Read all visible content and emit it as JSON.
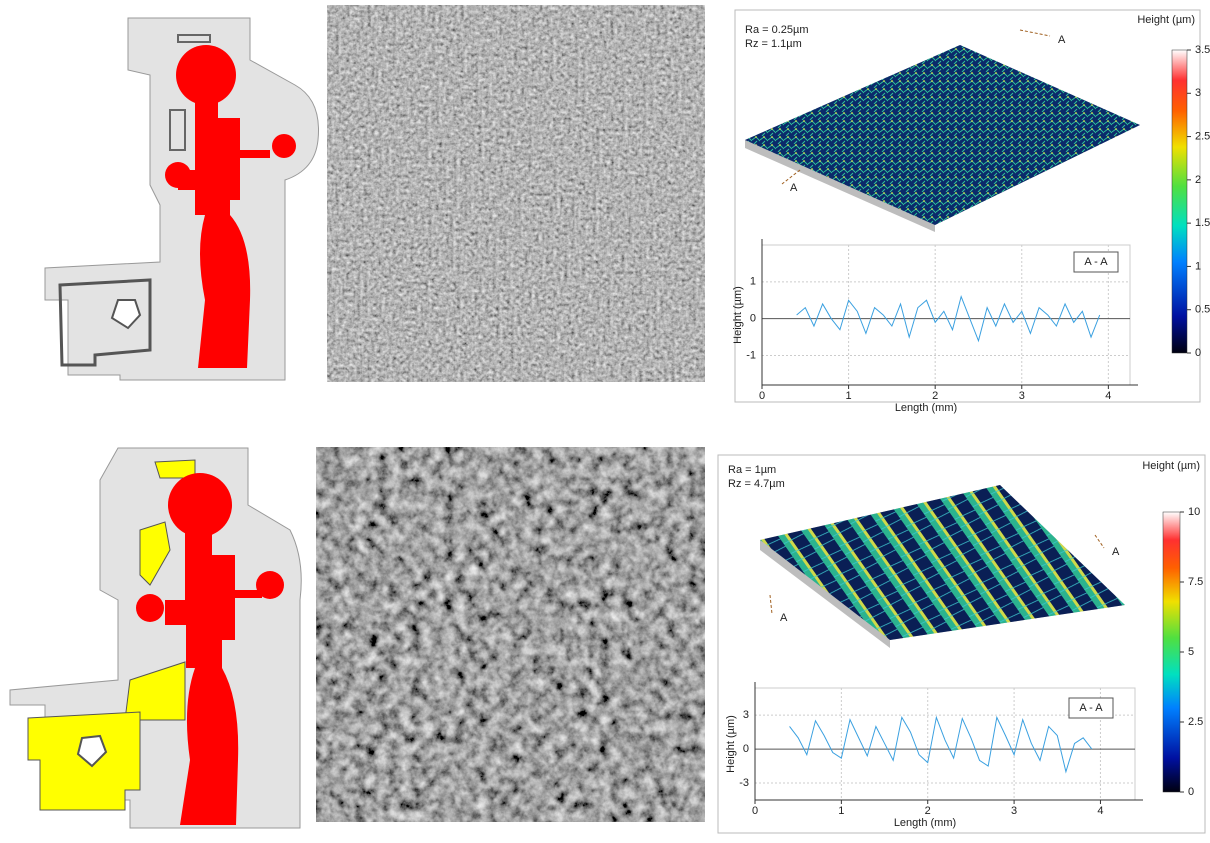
{
  "rows": [
    {
      "roughness": {
        "ra": "Ra = 0.25µm",
        "rz": "Rz = 1.1µm"
      },
      "section_marks": [
        "A",
        "A"
      ],
      "colorbar": {
        "title": "Height (µm)",
        "lim": [
          0,
          3.5
        ],
        "ticks": [
          0,
          0.5,
          1,
          1.5,
          2,
          2.5,
          3,
          3.5
        ]
      },
      "profile": {
        "legend": "A - A",
        "xlabel": "Length (mm)",
        "ylabel": "Height (µm)",
        "xlim": [
          0,
          4.25
        ],
        "ylim": [
          -1.8,
          2
        ],
        "xticks": [
          0,
          1,
          2,
          3,
          4
        ],
        "yticks": [
          -1,
          0,
          1
        ],
        "x": [
          0.4,
          0.5,
          0.6,
          0.7,
          0.8,
          0.9,
          1.0,
          1.1,
          1.2,
          1.3,
          1.4,
          1.5,
          1.6,
          1.7,
          1.8,
          1.9,
          2.0,
          2.1,
          2.2,
          2.3,
          2.4,
          2.5,
          2.6,
          2.7,
          2.8,
          2.9,
          3.0,
          3.1,
          3.2,
          3.3,
          3.4,
          3.5,
          3.6,
          3.7,
          3.8,
          3.9
        ],
        "values": [
          0.1,
          0.3,
          -0.2,
          0.4,
          0.0,
          -0.3,
          0.5,
          0.2,
          -0.4,
          0.3,
          0.1,
          -0.2,
          0.4,
          -0.5,
          0.3,
          0.5,
          -0.1,
          0.2,
          -0.3,
          0.6,
          0.0,
          -0.6,
          0.3,
          -0.2,
          0.4,
          -0.1,
          0.2,
          -0.4,
          0.3,
          0.1,
          -0.2,
          0.4,
          -0.1,
          0.2,
          -0.5,
          0.1
        ]
      }
    },
    {
      "roughness": {
        "ra": "Ra = 1µm",
        "rz": "Rz = 4.7µm"
      },
      "section_marks": [
        "A",
        "A"
      ],
      "colorbar": {
        "title": "Height (µm)",
        "lim": [
          0,
          10
        ],
        "ticks": [
          0,
          2.5,
          5,
          7.5,
          10
        ]
      },
      "profile": {
        "legend": "A - A",
        "xlabel": "Length (mm)",
        "ylabel": "Height (µm)",
        "xlim": [
          0,
          4.4
        ],
        "ylim": [
          -4.5,
          5.4
        ],
        "xticks": [
          0,
          1,
          2,
          3,
          4
        ],
        "yticks": [
          -3,
          0,
          3
        ],
        "x": [
          0.4,
          0.5,
          0.6,
          0.7,
          0.8,
          0.9,
          1.0,
          1.1,
          1.2,
          1.3,
          1.4,
          1.5,
          1.6,
          1.7,
          1.8,
          1.9,
          2.0,
          2.1,
          2.2,
          2.3,
          2.4,
          2.5,
          2.6,
          2.7,
          2.8,
          2.9,
          3.0,
          3.1,
          3.2,
          3.3,
          3.4,
          3.5,
          3.6,
          3.7,
          3.8,
          3.9
        ],
        "values": [
          2.0,
          1.0,
          -0.5,
          2.5,
          1.2,
          -0.3,
          -0.8,
          2.6,
          1.0,
          -0.6,
          2.0,
          0.5,
          -1.0,
          2.8,
          1.5,
          -0.5,
          -1.2,
          2.8,
          0.8,
          -0.8,
          2.7,
          1.0,
          -1.0,
          -1.5,
          2.8,
          1.2,
          -0.5,
          2.6,
          0.5,
          -1.0,
          2.0,
          1.2,
          -2.0,
          0.5,
          1.0,
          0.0
        ]
      }
    }
  ]
}
